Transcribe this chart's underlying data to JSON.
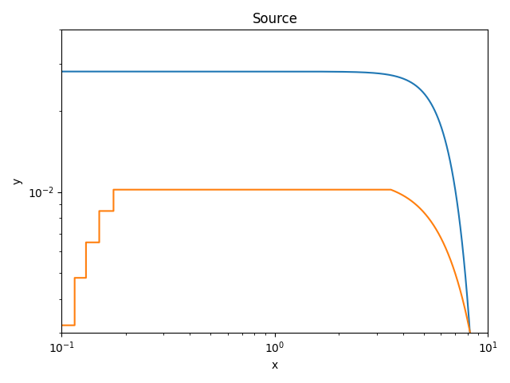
{
  "title": "Source",
  "xlabel": "x",
  "ylabel": "y",
  "blue_color": "#1f77b4",
  "orange_color": "#ff7f0e",
  "figsize": [
    6.4,
    4.8
  ],
  "dpi": 100,
  "xlim": [
    0.1,
    10
  ],
  "ylim": [
    0.003,
    0.04
  ]
}
